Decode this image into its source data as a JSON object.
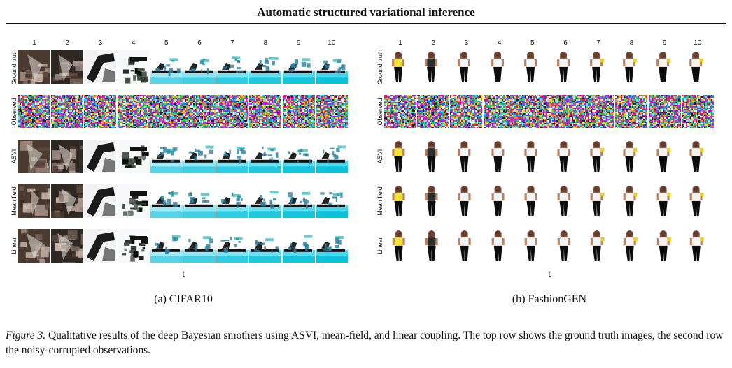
{
  "header": {
    "title": "Automatic structured variational inference"
  },
  "panels": [
    {
      "id": "cifar",
      "subcaption": "(a) CIFAR10",
      "axis_label": "t",
      "columns": [
        "1",
        "2",
        "3",
        "4",
        "5",
        "6",
        "7",
        "8",
        "9",
        "10"
      ],
      "rows": [
        {
          "label": "Ground truth",
          "kind": "cifar"
        },
        {
          "label": "Observed",
          "kind": "noise"
        },
        {
          "label": "ASVI",
          "kind": "cifar"
        },
        {
          "label": "Mean field",
          "kind": "cifar"
        },
        {
          "label": "Linear",
          "kind": "cifar"
        }
      ]
    },
    {
      "id": "fashion",
      "subcaption": "(b) FashionGEN",
      "axis_label": "t",
      "columns": [
        "1",
        "2",
        "3",
        "4",
        "5",
        "6",
        "7",
        "8",
        "9",
        "10"
      ],
      "rows": [
        {
          "label": "Ground truth",
          "kind": "fashion"
        },
        {
          "label": "Observed",
          "kind": "noise"
        },
        {
          "label": "ASVI",
          "kind": "fashion"
        },
        {
          "label": "Mean field",
          "kind": "fashion"
        },
        {
          "label": "Linear",
          "kind": "fashion"
        }
      ]
    }
  ],
  "caption": {
    "lead": "Figure 3.",
    "text": " Qualitative results of the deep Bayesian smothers using ASVI, mean-field, and linear coupling. The top row shows the ground truth images, the second row the noisy-corrupted observations."
  }
}
